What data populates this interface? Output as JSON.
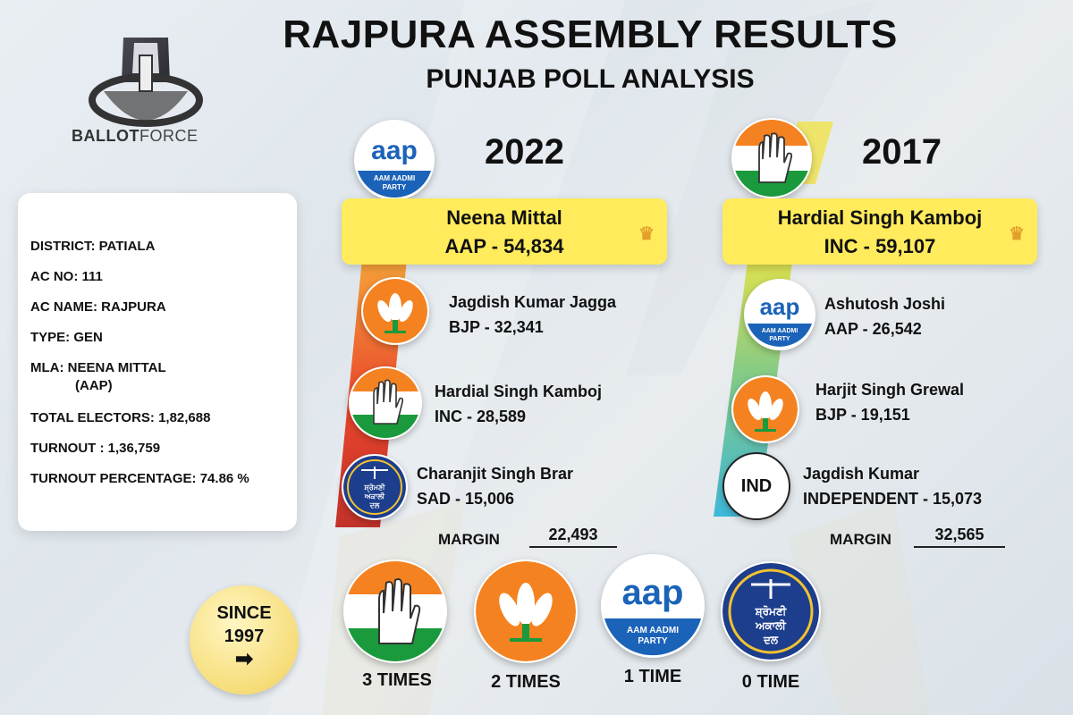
{
  "title": "RAJPURA ASSEMBLY RESULTS",
  "subtitle": "PUNJAB POLL ANALYSIS",
  "brand": {
    "part1": "BALLOT",
    "part2": "FORCE"
  },
  "info": {
    "district": "DISTRICT: PATIALA",
    "ac_no": "AC NO: 111",
    "ac_name": "AC NAME: RAJPURA",
    "type": "TYPE:  GEN",
    "mla": "MLA:  NEENA MITTAL",
    "mla_party": "(AAP)",
    "total_electors": "TOTAL ELECTORS:  1,82,688",
    "turnout": "TURNOUT : 1,36,759",
    "turnout_pct": "TURNOUT PERCENTAGE: 74.86 %"
  },
  "y2022": {
    "year": "2022",
    "winner_name": "Neena Mittal",
    "winner_votes": "AAP - 54,834",
    "candidates": [
      {
        "name": "Jagdish Kumar Jagga",
        "votes": "BJP - 32,341"
      },
      {
        "name": "Hardial Singh Kamboj",
        "votes": "INC - 28,589"
      },
      {
        "name": "Charanjit Singh Brar",
        "votes": "SAD - 15,006"
      }
    ],
    "margin_label": "MARGIN",
    "margin": "22,493"
  },
  "y2017": {
    "year": "2017",
    "winner_name": "Hardial Singh Kamboj",
    "winner_votes": "INC - 59,107",
    "candidates": [
      {
        "name": "Ashutosh Joshi",
        "votes": "AAP - 26,542"
      },
      {
        "name": "Harjit Singh Grewal",
        "votes": "BJP - 19,151"
      },
      {
        "name": "Jagdish Kumar",
        "votes": "INDEPENDENT - 15,073"
      }
    ],
    "margin_label": "MARGIN",
    "margin": "32,565"
  },
  "aap_logo": {
    "text": "aap",
    "sub1": "AAM AADMI",
    "sub2": "PARTY"
  },
  "sad_logo": {
    "line1": "ਸ਼੍ਰੋਮਣੀ",
    "line2": "ਅਕਾਲੀ",
    "line3": "ਦਲ"
  },
  "ind_label": "IND",
  "since": {
    "label1": "SINCE",
    "label2": "1997",
    "arrow": "➡"
  },
  "wins": [
    {
      "party": "INC",
      "label": "3 TIMES"
    },
    {
      "party": "BJP",
      "label": "2 TIMES"
    },
    {
      "party": "AAP",
      "label": "1 TIME"
    },
    {
      "party": "SAD",
      "label": "0 TIME"
    }
  ],
  "colors": {
    "winner_bg": "#ffeb5c",
    "crown": "#e2a02a",
    "saffron": "#f58220",
    "green": "#1a9a3c",
    "aap_blue": "#1b63b8",
    "sad_blue": "#1d3e8c"
  }
}
